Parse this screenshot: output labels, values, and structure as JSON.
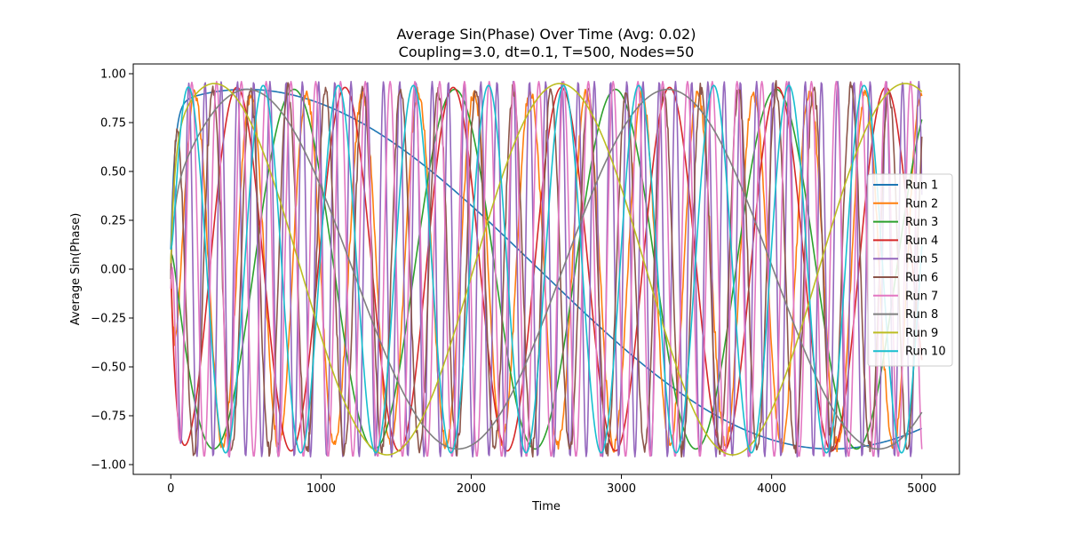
{
  "chart_data": {
    "type": "line",
    "title": "Average Sin(Phase) Over Time (Avg: 0.02)",
    "subtitle": "Coupling=3.0, dt=0.1, T=500, Nodes=50",
    "xlabel": "Time",
    "ylabel": "Average Sin(Phase)",
    "xlim": [
      -250,
      5250
    ],
    "ylim": [
      -1.05,
      1.05
    ],
    "x_ticks": [
      0,
      1000,
      2000,
      3000,
      4000,
      5000
    ],
    "x_tick_labels": [
      "0",
      "1000",
      "2000",
      "3000",
      "4000",
      "5000"
    ],
    "y_ticks": [
      1.0,
      0.75,
      0.5,
      0.25,
      0.0,
      -0.25,
      -0.5,
      -0.75,
      -1.0
    ],
    "y_tick_labels": [
      "1.00",
      "0.75",
      "0.50",
      "0.25",
      "0.00",
      "−0.25",
      "−0.50",
      "−0.75",
      "−1.00"
    ],
    "grid": false,
    "legend_position": "center-right",
    "series": [
      {
        "name": "Run 1",
        "color": "#1f77b4",
        "amplitude": 0.92,
        "period": 7800,
        "peak_time": 500,
        "start_value": 0.1
      },
      {
        "name": "Run 2",
        "color": "#ff7f0e",
        "amplitude": 0.9,
        "period": 372,
        "peak_time": 160,
        "start_value": 0.05,
        "jitter": 0.04
      },
      {
        "name": "Run 3",
        "color": "#2ca02c",
        "amplitude": 0.92,
        "period": 1070,
        "peak_time": 820,
        "start_value": 0.08
      },
      {
        "name": "Run 4",
        "color": "#d62728",
        "amplitude": 0.93,
        "period": 720,
        "peak_time": 1160,
        "start_value": 0.0
      },
      {
        "name": "Run 5",
        "color": "#9467bd",
        "amplitude": 0.96,
        "period": 108,
        "peak_time": 120,
        "start_value": -0.05
      },
      {
        "name": "Run 6",
        "color": "#8c564b",
        "amplitude": 0.92,
        "period": 250,
        "peak_time": 780,
        "start_value": -0.05,
        "jitter": 0.05
      },
      {
        "name": "Run 7",
        "color": "#e377c2",
        "amplitude": 0.96,
        "period": 165,
        "peak_time": 140,
        "start_value": -0.1
      },
      {
        "name": "Run 8",
        "color": "#7f7f7f",
        "amplitude": 0.92,
        "period": 2800,
        "peak_time": 510,
        "start_value": 0.05
      },
      {
        "name": "Run 9",
        "color": "#bcbd22",
        "amplitude": 0.95,
        "period": 2300,
        "peak_time": 290,
        "start_value": 0.03
      },
      {
        "name": "Run 10",
        "color": "#17becf",
        "amplitude": 0.94,
        "period": 500,
        "peak_time": 115,
        "start_value": 0.1
      }
    ],
    "x_start": 0,
    "x_end": 5000
  }
}
